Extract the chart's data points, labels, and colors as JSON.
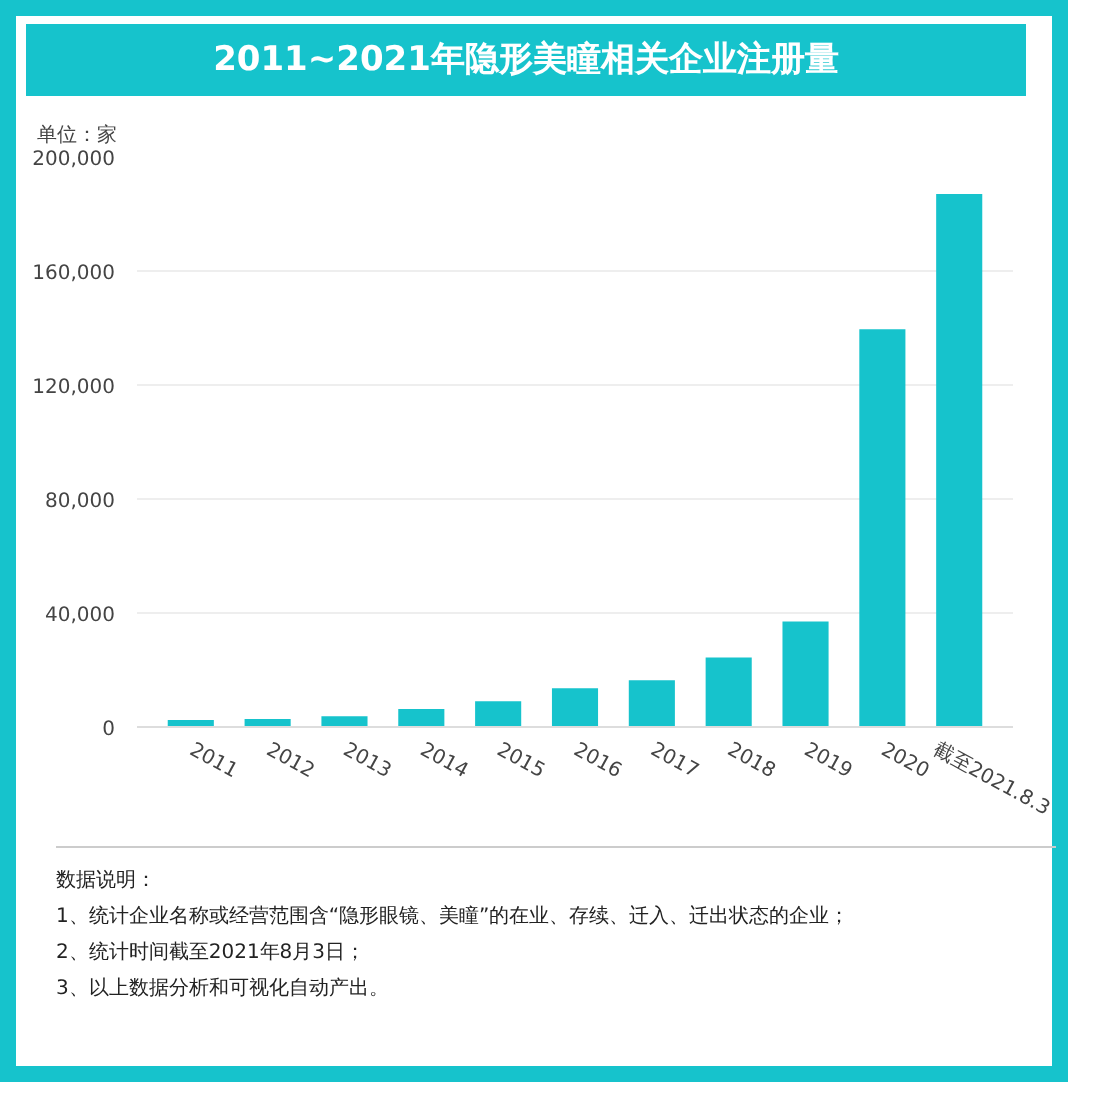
{
  "chart_data": {
    "type": "bar",
    "title": "2011~2021年隐形美瞳相关企业注册量",
    "ylabel": "单位：家",
    "categories": [
      "2011",
      "2012",
      "2013",
      "2014",
      "2015",
      "2016",
      "2017",
      "2018",
      "2019",
      "2020",
      "截至2021.8.3"
    ],
    "values": [
      2500,
      2800,
      3800,
      6300,
      9000,
      13600,
      16400,
      24400,
      37000,
      139600,
      187000
    ],
    "color": "#16c3cc",
    "ylim": [
      0,
      200000
    ],
    "yticks": [
      {
        "value": 0,
        "label": "0"
      },
      {
        "value": 40000,
        "label": "40,000"
      },
      {
        "value": 80000,
        "label": "80,000"
      },
      {
        "value": 120000,
        "label": "120,000"
      },
      {
        "value": 160000,
        "label": "160,000"
      },
      {
        "value": 200000,
        "label": "200,000"
      }
    ],
    "grid": "y",
    "annotations": [
      "数据说明：",
      "1、统计企业名称或经营范围含“隐形眼镜、美瞳”的在业、存续、迁入、迁出状态的企业；",
      "2、统计时间截至2021年8月3日；",
      "3、以上数据分析和可视化自动产出。"
    ]
  }
}
